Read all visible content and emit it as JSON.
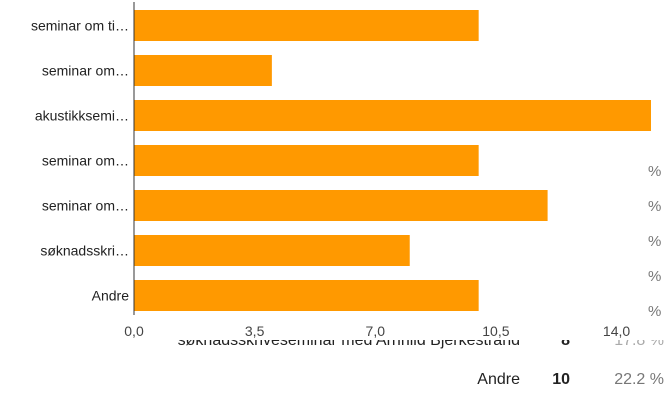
{
  "chart_data": {
    "type": "bar",
    "orientation": "horizontal",
    "categories": [
      "seminar om ti…",
      "seminar om…",
      "akustikksemi…",
      "seminar om…",
      "seminar om…",
      "søknadsskri…",
      "Andre"
    ],
    "values": [
      10,
      4,
      15,
      10,
      12,
      8,
      10
    ],
    "xlim": [
      0,
      15
    ],
    "x_ticks": [
      "0,0",
      "3,5",
      "7,0",
      "10,5",
      "14,0"
    ],
    "x_tick_values": [
      0,
      3.5,
      7.0,
      10.5,
      14.0
    ],
    "bar_color": "#ff9900",
    "grid": false
  },
  "side_pct_symbols": [
    "%",
    "%",
    "%",
    "%",
    "%"
  ],
  "summary_rows": [
    {
      "label": "søknadsskriveseminar med Arnhild Bjerkestrand",
      "count": "8",
      "pct": "17.8 %"
    },
    {
      "label": "Andre",
      "count": "10",
      "pct": "22.2 %"
    }
  ]
}
